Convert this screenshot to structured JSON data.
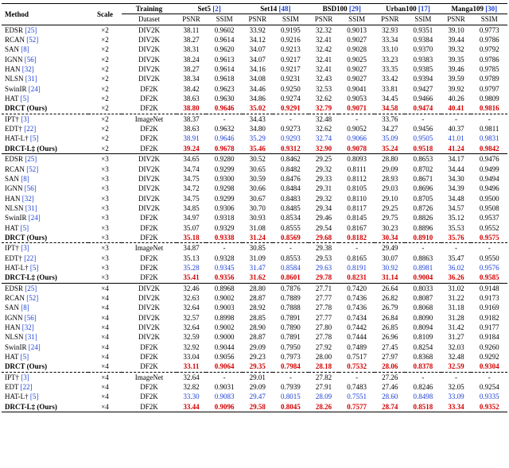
{
  "colors": {
    "text": "#000000",
    "link": "#1a3fd6",
    "red": "#d40000",
    "blue": "#1a3fd6",
    "background": "#ffffff"
  },
  "font": {
    "family": "Times New Roman",
    "size_pt": 7
  },
  "header": {
    "method": "Method",
    "scale": "Scale",
    "training": "Training",
    "dataset": "Dataset",
    "psnr": "PSNR",
    "ssim": "SSIM",
    "sets": [
      {
        "name": "Set5",
        "ref": "[2]"
      },
      {
        "name": "Set14",
        "ref": "[48]"
      },
      {
        "name": "BSD100",
        "ref": "[29]"
      },
      {
        "name": "Urban100",
        "ref": "[17]"
      },
      {
        "name": "Manga109",
        "ref": "[30]"
      }
    ]
  },
  "blocks": [
    {
      "sep": "none",
      "rows": [
        {
          "m": "EDSR",
          "mref": "[25]",
          "scale": "×2",
          "data": "DIV2K",
          "v": [
            "38.11",
            "0.9602",
            "33.92",
            "0.9195",
            "32.32",
            "0.9013",
            "32.93",
            "0.9351",
            "39.10",
            "0.9773"
          ]
        },
        {
          "m": "RCAN",
          "mref": "[52]",
          "scale": "×2",
          "data": "DIV2K",
          "v": [
            "38.27",
            "0.9614",
            "34.12",
            "0.9216",
            "32.41",
            "0.9027",
            "33.34",
            "0.9384",
            "39.44",
            "0.9786"
          ]
        },
        {
          "m": "SAN",
          "mref": "[8]",
          "scale": "×2",
          "data": "DIV2K",
          "v": [
            "38.31",
            "0.9620",
            "34.07",
            "0.9213",
            "32.42",
            "0.9028",
            "33.10",
            "0.9370",
            "39.32",
            "0.9792"
          ]
        },
        {
          "m": "IGNN",
          "mref": "[56]",
          "scale": "×2",
          "data": "DIV2K",
          "v": [
            "38.24",
            "0.9613",
            "34.07",
            "0.9217",
            "32.41",
            "0.9025",
            "33.23",
            "0.9383",
            "39.35",
            "0.9786"
          ]
        },
        {
          "m": "HAN",
          "mref": "[32]",
          "scale": "×2",
          "data": "DIV2K",
          "v": [
            "38.27",
            "0.9614",
            "34.16",
            "0.9217",
            "32.41",
            "0.9027",
            "33.35",
            "0.9385",
            "39.46",
            "0.9785"
          ]
        },
        {
          "m": "NLSN",
          "mref": "[31]",
          "scale": "×2",
          "data": "DIV2K",
          "v": [
            "38.34",
            "0.9618",
            "34.08",
            "0.9231",
            "32.43",
            "0.9027",
            "33.42",
            "0.9394",
            "39.59",
            "0.9789"
          ]
        },
        {
          "m": "SwinIR",
          "mref": "[24]",
          "scale": "×2",
          "data": "DF2K",
          "v": [
            "38.42",
            "0.9623",
            "34.46",
            "0.9250",
            "32.53",
            "0.9041",
            "33.81",
            "0.9427",
            "39.92",
            "0.9797"
          ]
        },
        {
          "m": "HAT",
          "mref": "[5]",
          "scale": "×2",
          "data": "DF2K",
          "v": [
            "38.63",
            "0.9630",
            "34.86",
            "0.9274",
            "32.62",
            "0.9053",
            "34.45",
            "0.9466",
            "40.26",
            "0.9809"
          ]
        },
        {
          "m": "DRCT (Ours)",
          "bold": true,
          "scale": "×2",
          "data": "DF2K",
          "v": [
            "38.80",
            "0.9646",
            "35.02",
            "0.9291",
            "32.79",
            "0.9071",
            "34.58",
            "0.9474",
            "40.41",
            "0.9816"
          ],
          "vstyle": "redbold"
        }
      ]
    },
    {
      "sep": "dashed",
      "rows": [
        {
          "m": "IPT†",
          "mref": "[3]",
          "scale": "×2",
          "data": "ImageNet",
          "v": [
            "38.37",
            "-",
            "34.43",
            "-",
            "32.48",
            "-",
            "33.76",
            "-",
            "-",
            "-"
          ]
        },
        {
          "m": "EDT†",
          "mref": "[22]",
          "scale": "×2",
          "data": "DF2K",
          "v": [
            "38.63",
            "0.9632",
            "34.80",
            "0.9273",
            "32.62",
            "0.9052",
            "34.27",
            "0.9456",
            "40.37",
            "0.9811"
          ]
        },
        {
          "m": "HAT-L†",
          "mref": "[5]",
          "scale": "×2",
          "data": "DF2K",
          "v": [
            "38.91",
            "0.9646",
            "35.29",
            "0.9293",
            "32.74",
            "0.9066",
            "35.09",
            "0.9505",
            "41.01",
            "0.9831"
          ],
          "vstyle": "blue"
        },
        {
          "m": "DRCT-L‡ (Ours)",
          "bold": true,
          "scale": "×2",
          "data": "DF2K",
          "v": [
            "39.24",
            "0.9678",
            "35.46",
            "0.9312",
            "32.90",
            "0.9078",
            "35.24",
            "0.9518",
            "41.24",
            "0.9842"
          ],
          "vstyle": "redbold"
        }
      ]
    },
    {
      "sep": "solid",
      "rows": [
        {
          "m": "EDSR",
          "mref": "[25]",
          "scale": "×3",
          "data": "DIV2K",
          "v": [
            "34.65",
            "0.9280",
            "30.52",
            "0.8462",
            "29.25",
            "0.8093",
            "28.80",
            "0.8653",
            "34.17",
            "0.9476"
          ]
        },
        {
          "m": "RCAN",
          "mref": "[52]",
          "scale": "×3",
          "data": "DIV2K",
          "v": [
            "34.74",
            "0.9299",
            "30.65",
            "0.8482",
            "29.32",
            "0.8111",
            "29.09",
            "0.8702",
            "34.44",
            "0.9499"
          ]
        },
        {
          "m": "SAN",
          "mref": "[8]",
          "scale": "×3",
          "data": "DIV2K",
          "v": [
            "34.75",
            "0.9300",
            "30.59",
            "0.8476",
            "29.33",
            "0.8112",
            "28.93",
            "0.8671",
            "34.30",
            "0.9494"
          ]
        },
        {
          "m": "IGNN",
          "mref": "[56]",
          "scale": "×3",
          "data": "DIV2K",
          "v": [
            "34.72",
            "0.9298",
            "30.66",
            "0.8484",
            "29.31",
            "0.8105",
            "29.03",
            "0.8696",
            "34.39",
            "0.9496"
          ]
        },
        {
          "m": "HAN",
          "mref": "[32]",
          "scale": "×3",
          "data": "DIV2K",
          "v": [
            "34.75",
            "0.9299",
            "30.67",
            "0.8483",
            "29.32",
            "0.8110",
            "29.10",
            "0.8705",
            "34.48",
            "0.9500"
          ]
        },
        {
          "m": "NLSN",
          "mref": "[31]",
          "scale": "×3",
          "data": "DIV2K",
          "v": [
            "34.85",
            "0.9306",
            "30.70",
            "0.8485",
            "29.34",
            "0.8117",
            "29.25",
            "0.8726",
            "34.57",
            "0.9508"
          ]
        },
        {
          "m": "SwinIR",
          "mref": "[24]",
          "scale": "×3",
          "data": "DF2K",
          "v": [
            "34.97",
            "0.9318",
            "30.93",
            "0.8534",
            "29.46",
            "0.8145",
            "29.75",
            "0.8826",
            "35.12",
            "0.9537"
          ]
        },
        {
          "m": "HAT",
          "mref": "[5]",
          "scale": "×3",
          "data": "DF2K",
          "v": [
            "35.07",
            "0.9329",
            "31.08",
            "0.8555",
            "29.54",
            "0.8167",
            "30.23",
            "0.8896",
            "35.53",
            "0.9552"
          ]
        },
        {
          "m": "DRCT (Ours)",
          "bold": true,
          "scale": "×3",
          "data": "DF2K",
          "v": [
            "35.18",
            "0.9338",
            "31.24",
            "0.8569",
            "29.68",
            "0.8182",
            "30.34",
            "0.8910",
            "35.76",
            "0.9575"
          ],
          "vstyle": "redbold"
        }
      ]
    },
    {
      "sep": "dashed",
      "rows": [
        {
          "m": "IPT†",
          "mref": "[3]",
          "scale": "×3",
          "data": "ImageNet",
          "v": [
            "34.87",
            "-",
            "30.85",
            "-",
            "29.38",
            "-",
            "29.49",
            "-",
            "-",
            "-"
          ]
        },
        {
          "m": "EDT†",
          "mref": "[22]",
          "scale": "×3",
          "data": "DF2K",
          "v": [
            "35.13",
            "0.9328",
            "31.09",
            "0.8553",
            "29.53",
            "0.8165",
            "30.07",
            "0.8863",
            "35.47",
            "0.9550"
          ]
        },
        {
          "m": "HAT-L†",
          "mref": "[5]",
          "scale": "×3",
          "data": "DF2K",
          "v": [
            "35.28",
            "0.9345",
            "31.47",
            "0.8584",
            "29.63",
            "0.8191",
            "30.92",
            "0.8981",
            "36.02",
            "0.9576"
          ],
          "vstyle": "blue"
        },
        {
          "m": "DRCT-L‡ (Ours)",
          "bold": true,
          "scale": "×3",
          "data": "DF2K",
          "v": [
            "35.41",
            "0.9356",
            "31.62",
            "0.8601",
            "29.78",
            "0.8231",
            "31.14",
            "0.9004",
            "36.26",
            "0.9585"
          ],
          "vstyle": "redbold"
        }
      ]
    },
    {
      "sep": "solid",
      "rows": [
        {
          "m": "EDSR",
          "mref": "[25]",
          "scale": "×4",
          "data": "DIV2K",
          "v": [
            "32.46",
            "0.8968",
            "28.80",
            "0.7876",
            "27.71",
            "0.7420",
            "26.64",
            "0.8033",
            "31.02",
            "0.9148"
          ]
        },
        {
          "m": "RCAN",
          "mref": "[52]",
          "scale": "×4",
          "data": "DIV2K",
          "v": [
            "32.63",
            "0.9002",
            "28.87",
            "0.7889",
            "27.77",
            "0.7436",
            "26.82",
            "0.8087",
            "31.22",
            "0.9173"
          ]
        },
        {
          "m": "SAN",
          "mref": "[8]",
          "scale": "×4",
          "data": "DIV2K",
          "v": [
            "32.64",
            "0.9003",
            "28.92",
            "0.7888",
            "27.78",
            "0.7436",
            "26.79",
            "0.8068",
            "31.18",
            "0.9169"
          ]
        },
        {
          "m": "IGNN",
          "mref": "[56]",
          "scale": "×4",
          "data": "DIV2K",
          "v": [
            "32.57",
            "0.8998",
            "28.85",
            "0.7891",
            "27.77",
            "0.7434",
            "26.84",
            "0.8090",
            "31.28",
            "0.9182"
          ]
        },
        {
          "m": "HAN",
          "mref": "[32]",
          "scale": "×4",
          "data": "DIV2K",
          "v": [
            "32.64",
            "0.9002",
            "28.90",
            "0.7890",
            "27.80",
            "0.7442",
            "26.85",
            "0.8094",
            "31.42",
            "0.9177"
          ]
        },
        {
          "m": "NLSN",
          "mref": "[31]",
          "scale": "×4",
          "data": "DIV2K",
          "v": [
            "32.59",
            "0.9000",
            "28.87",
            "0.7891",
            "27.78",
            "0.7444",
            "26.96",
            "0.8109",
            "31.27",
            "0.9184"
          ]
        },
        {
          "m": "SwinIR",
          "mref": "[24]",
          "scale": "×4",
          "data": "DF2K",
          "v": [
            "32.92",
            "0.9044",
            "29.09",
            "0.7950",
            "27.92",
            "0.7489",
            "27.45",
            "0.8254",
            "32.03",
            "0.9260"
          ]
        },
        {
          "m": "HAT",
          "mref": "[5]",
          "scale": "×4",
          "data": "DF2K",
          "v": [
            "33.04",
            "0.9056",
            "29.23",
            "0.7973",
            "28.00",
            "0.7517",
            "27.97",
            "0.8368",
            "32.48",
            "0.9292"
          ]
        },
        {
          "m": "DRCT (Ours)",
          "bold": true,
          "scale": "×4",
          "data": "DF2K",
          "v": [
            "33.11",
            "0.9064",
            "29.35",
            "0.7984",
            "28.18",
            "0.7532",
            "28.06",
            "0.8378",
            "32.59",
            "0.9304"
          ],
          "vstyle": "redbold"
        }
      ]
    },
    {
      "sep": "dashed",
      "rows": [
        {
          "m": "IPT†",
          "mref": "[3]",
          "scale": "×4",
          "data": "ImageNet",
          "v": [
            "32.64",
            "-",
            "29.01",
            "-",
            "27.82",
            "-",
            "27.26",
            "-",
            "-",
            "-"
          ]
        },
        {
          "m": "EDT",
          "mref": "[22]",
          "scale": "×4",
          "data": "DF2K",
          "v": [
            "32.82",
            "0.9031",
            "29.09",
            "0.7939",
            "27.91",
            "0.7483",
            "27.46",
            "0.8246",
            "32.05",
            "0.9254"
          ]
        },
        {
          "m": "HAT-L†",
          "mref": "[5]",
          "scale": "×4",
          "data": "DF2K",
          "v": [
            "33.30",
            "0.9083",
            "29.47",
            "0.8015",
            "28.09",
            "0.7551",
            "28.60",
            "0.8498",
            "33.09",
            "0.9335"
          ],
          "vstyle": "blue"
        },
        {
          "m": "DRCT-L‡ (Ours)",
          "bold": true,
          "scale": "×4",
          "data": "DF2K",
          "v": [
            "33.44",
            "0.9096",
            "29.58",
            "0.8045",
            "28.26",
            "0.7577",
            "28.74",
            "0.8518",
            "33.34",
            "0.9352"
          ],
          "vstyle": "redbold"
        }
      ]
    }
  ]
}
